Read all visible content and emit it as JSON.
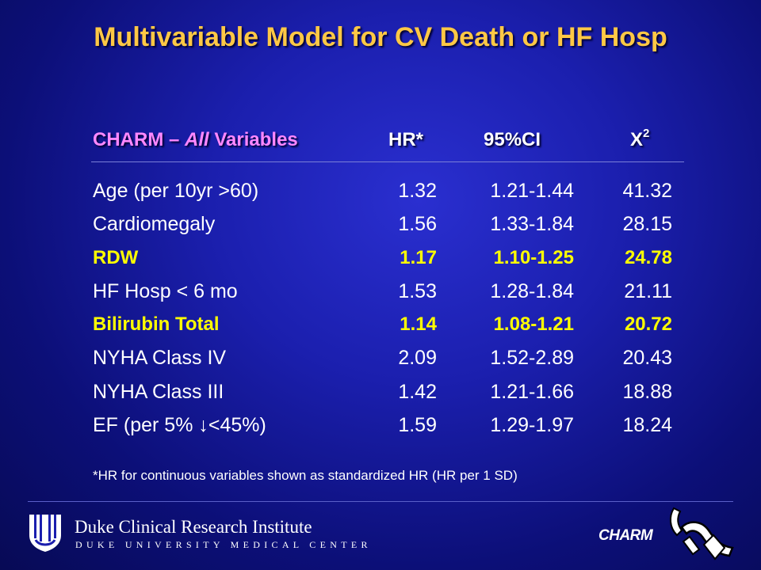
{
  "title": "Multivariable Model for CV Death or HF Hosp",
  "table": {
    "header": {
      "label_prefix": "CHARM – ",
      "label_italic": "All",
      "label_suffix": " Variables",
      "hr": "HR*",
      "ci": "95%CI",
      "x2_base": "X",
      "x2_sup": "2"
    },
    "rows": [
      {
        "label": "Age (per 10yr >60)",
        "hr": "1.32",
        "ci": "1.21-1.44",
        "x2": "41.32",
        "highlight": false
      },
      {
        "label": "Cardiomegaly",
        "hr": "1.56",
        "ci": "1.33-1.84",
        "x2": "28.15",
        "highlight": false
      },
      {
        "label": "RDW",
        "hr": "1.17",
        "ci": "1.10-1.25",
        "x2": "24.78",
        "highlight": true
      },
      {
        "label": "HF Hosp < 6 mo",
        "hr": "1.53",
        "ci": "1.28-1.84",
        "x2": "21.11",
        "highlight": false
      },
      {
        "label": "Bilirubin Total",
        "hr": "1.14",
        "ci": "1.08-1.21",
        "x2": "20.72",
        "highlight": true
      },
      {
        "label": "NYHA   Class IV",
        "hr": "2.09",
        "ci": "1.52-2.89",
        "x2": "20.43",
        "highlight": false
      },
      {
        "label": "NYHA   Class III",
        "hr": "1.42",
        "ci": "1.21-1.66",
        "x2": "18.88",
        "highlight": false
      },
      {
        "label": "EF (per 5% ↓<45%)",
        "hr": "1.59",
        "ci": "1.29-1.97",
        "x2": "18.24",
        "highlight": false
      }
    ]
  },
  "footnote": "*HR for continuous variables shown as standardized HR (HR per 1 SD)",
  "footer": {
    "institute": "Duke Clinical Research Institute",
    "center": "DUKE UNIVERSITY MEDICAL CENTER",
    "trial": "CHARM"
  },
  "colors": {
    "title": "#ffc845",
    "header_label": "#ff88ff",
    "highlight": "#ffff00",
    "text": "#ffffff",
    "background": "#1b1fae"
  },
  "icons": {
    "duke": "duke-shield-logo-icon",
    "charm": "charm-trial-logo-icon"
  }
}
